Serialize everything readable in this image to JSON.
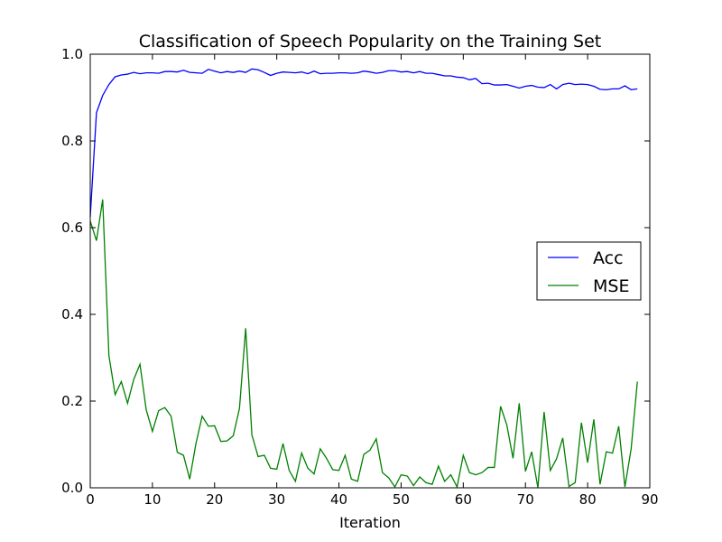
{
  "chart_data": {
    "type": "line",
    "title": "Classification of Speech Popularity on the Training Set",
    "xlabel": "Iteration",
    "ylabel": "",
    "xlim": [
      0,
      90
    ],
    "ylim": [
      0.0,
      1.0
    ],
    "xticks": [
      "0",
      "10",
      "20",
      "30",
      "40",
      "50",
      "60",
      "70",
      "80",
      "90"
    ],
    "yticks": [
      "0.0",
      "0.2",
      "0.4",
      "0.6",
      "0.8",
      "1.0"
    ],
    "grid": false,
    "legend_position": "center-right",
    "x": [
      0,
      1,
      2,
      3,
      4,
      5,
      6,
      7,
      8,
      9,
      10,
      11,
      12,
      13,
      14,
      15,
      16,
      17,
      18,
      19,
      20,
      21,
      22,
      23,
      24,
      25,
      26,
      27,
      28,
      29,
      30,
      31,
      32,
      33,
      34,
      35,
      36,
      37,
      38,
      39,
      40,
      41,
      42,
      43,
      44,
      45,
      46,
      47,
      48,
      49,
      50,
      51,
      52,
      53,
      54,
      55,
      56,
      57,
      58,
      59,
      60,
      61,
      62,
      63,
      64,
      65,
      66,
      67,
      68,
      69,
      70,
      71,
      72,
      73,
      74,
      75,
      76,
      77,
      78,
      79,
      80,
      81,
      82,
      83,
      84,
      85,
      86,
      87,
      88
    ],
    "series": [
      {
        "name": "Acc",
        "color": "#0000ff",
        "values": [
          0.625,
          0.865,
          0.905,
          0.93,
          0.948,
          0.952,
          0.954,
          0.958,
          0.955,
          0.957,
          0.957,
          0.956,
          0.96,
          0.96,
          0.959,
          0.963,
          0.958,
          0.957,
          0.956,
          0.965,
          0.961,
          0.957,
          0.96,
          0.958,
          0.961,
          0.958,
          0.966,
          0.964,
          0.958,
          0.951,
          0.956,
          0.959,
          0.958,
          0.957,
          0.959,
          0.955,
          0.961,
          0.955,
          0.956,
          0.956,
          0.957,
          0.957,
          0.956,
          0.957,
          0.961,
          0.959,
          0.956,
          0.958,
          0.962,
          0.962,
          0.959,
          0.96,
          0.957,
          0.96,
          0.956,
          0.956,
          0.953,
          0.95,
          0.95,
          0.947,
          0.946,
          0.941,
          0.944,
          0.932,
          0.933,
          0.929,
          0.929,
          0.93,
          0.926,
          0.922,
          0.926,
          0.928,
          0.924,
          0.923,
          0.93,
          0.92,
          0.93,
          0.933,
          0.93,
          0.931,
          0.93,
          0.926,
          0.919,
          0.918,
          0.92,
          0.92,
          0.927,
          0.918,
          0.92
        ]
      },
      {
        "name": "MSE",
        "color": "#008000",
        "values": [
          0.615,
          0.57,
          0.665,
          0.305,
          0.215,
          0.245,
          0.195,
          0.25,
          0.285,
          0.18,
          0.13,
          0.178,
          0.185,
          0.165,
          0.082,
          0.075,
          0.02,
          0.102,
          0.165,
          0.142,
          0.143,
          0.107,
          0.108,
          0.12,
          0.183,
          0.368,
          0.122,
          0.072,
          0.075,
          0.045,
          0.043,
          0.102,
          0.04,
          0.015,
          0.08,
          0.045,
          0.032,
          0.09,
          0.068,
          0.042,
          0.04,
          0.075,
          0.02,
          0.015,
          0.077,
          0.087,
          0.113,
          0.035,
          0.023,
          0.002,
          0.03,
          0.027,
          0.005,
          0.025,
          0.012,
          0.008,
          0.05,
          0.015,
          0.03,
          0.002,
          0.075,
          0.035,
          0.03,
          0.035,
          0.047,
          0.047,
          0.188,
          0.145,
          0.068,
          0.195,
          0.038,
          0.083,
          0.0,
          0.175,
          0.04,
          0.067,
          0.115,
          0.003,
          0.012,
          0.15,
          0.058,
          0.158,
          0.008,
          0.083,
          0.08,
          0.142,
          0.002,
          0.09,
          0.245
        ]
      }
    ]
  }
}
